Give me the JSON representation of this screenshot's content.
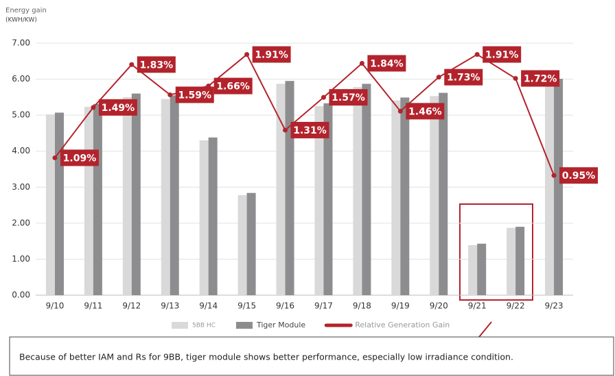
{
  "chart_data": {
    "type": "bar",
    "y_axis_label": [
      "Energy gain",
      "(KWH/KW)"
    ],
    "categories": [
      "9/10",
      "9/11",
      "9/12",
      "9/13",
      "9/14",
      "9/15",
      "9/16",
      "9/17",
      "9/18",
      "9/19",
      "9/20",
      "9/21",
      "9/22",
      "9/23"
    ],
    "series": [
      {
        "name": "5BB HC",
        "color": "#d9d9d9",
        "values": [
          5.02,
          5.23,
          5.5,
          5.45,
          4.3,
          2.78,
          5.87,
          5.25,
          5.78,
          5.41,
          5.53,
          1.39,
          1.87,
          5.95
        ]
      },
      {
        "name": "Tiger Module",
        "color": "#8d8d8f",
        "values": [
          5.07,
          5.31,
          5.6,
          5.55,
          4.38,
          2.84,
          5.95,
          5.33,
          5.87,
          5.49,
          5.62,
          1.43,
          1.9,
          6.01
        ]
      },
      {
        "name": "Relative Generation Gain",
        "type": "line",
        "axis": "y2",
        "color": "#b3232c",
        "values": [
          1.09,
          1.49,
          1.83,
          1.59,
          1.66,
          1.91,
          1.31,
          1.57,
          1.84,
          1.46,
          1.73,
          1.91,
          1.72,
          0.95
        ],
        "value_labels": [
          "1.09%",
          "1.49%",
          "1.83%",
          "1.59%",
          "1.66%",
          "1.91%",
          "1.31%",
          "1.57%",
          "1.84%",
          "1.46%",
          "1.73%",
          "1.91%",
          "1.72%",
          "0.95%"
        ]
      }
    ],
    "ylim": [
      0,
      7
    ],
    "yticks": [
      {
        "value": 0,
        "label": "0.00"
      },
      {
        "value": 1,
        "label": "1.00"
      },
      {
        "value": 2,
        "label": "2.00"
      },
      {
        "value": 3,
        "label": "3.00"
      },
      {
        "value": 4,
        "label": "4.00"
      },
      {
        "value": 5,
        "label": "5.00"
      },
      {
        "value": 6,
        "label": "6.00"
      },
      {
        "value": 7,
        "label": "7.00"
      }
    ],
    "y2lim": [
      0,
      2
    ],
    "grid": true,
    "legend": "bottom",
    "annotation": "Because of better IAM and Rs for 9BB, tiger module shows better performance, especially low irradiance condition."
  }
}
